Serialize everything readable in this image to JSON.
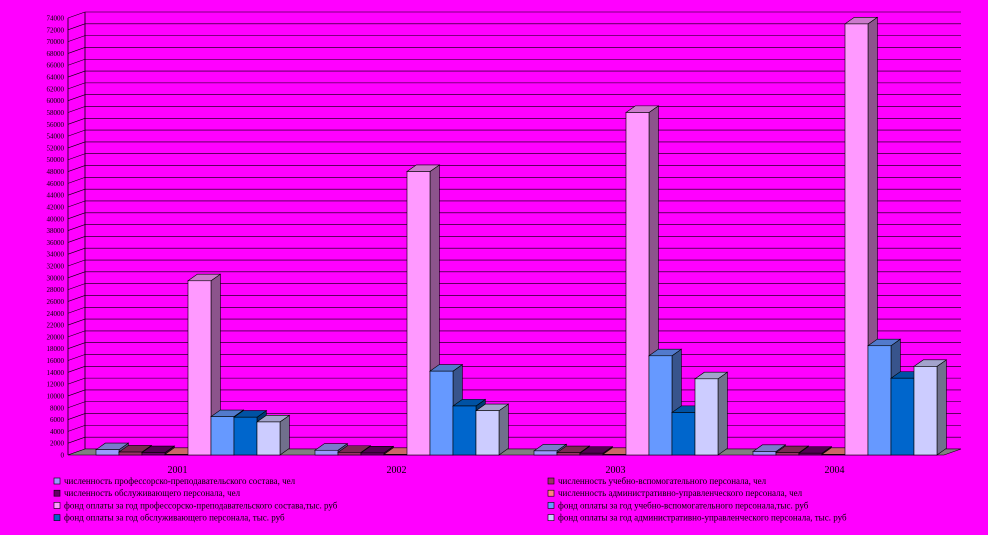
{
  "chart_data": {
    "type": "bar",
    "categories": [
      "2001",
      "2002",
      "2003",
      "2004"
    ],
    "ylim": [
      0,
      74000
    ],
    "ytick_step": 2000,
    "grid": true,
    "legend_position": "bottom",
    "series": [
      {
        "name": "численность профессорско-преподавательского состава, чел",
        "color": "#9999FF",
        "values": [
          900,
          800,
          700,
          600
        ]
      },
      {
        "name": "численность учебно-вспомогательного персонала, чел",
        "color": "#993366",
        "values": [
          500,
          450,
          400,
          400
        ]
      },
      {
        "name": "численность обслуживающего персонала, чел",
        "color": "#660066",
        "values": [
          400,
          350,
          300,
          300
        ]
      },
      {
        "name": "численность административно-управленческого персонала, чел",
        "color": "#FF8080",
        "values": [
          100,
          100,
          100,
          100
        ]
      },
      {
        "name": "фонд оплаты за год профессорско-преподавательского состава,тыс. руб",
        "color": "#FF99FF",
        "values": [
          29500,
          48000,
          58000,
          73000
        ]
      },
      {
        "name": "фонд оплаты за год учебно-вспомогательного персонала,тыс. руб",
        "color": "#6699FF",
        "values": [
          6500,
          14200,
          16800,
          18500
        ]
      },
      {
        "name": "фонд оплаты за год обслуживающего персонала, тыс. руб",
        "color": "#0066CC",
        "values": [
          6400,
          8300,
          7200,
          13000
        ]
      },
      {
        "name": "фонд оплаты за год административно-управленческого персонала, тыс. руб",
        "color": "#CCCCFF",
        "values": [
          5600,
          7500,
          12900,
          15000
        ]
      }
    ]
  }
}
